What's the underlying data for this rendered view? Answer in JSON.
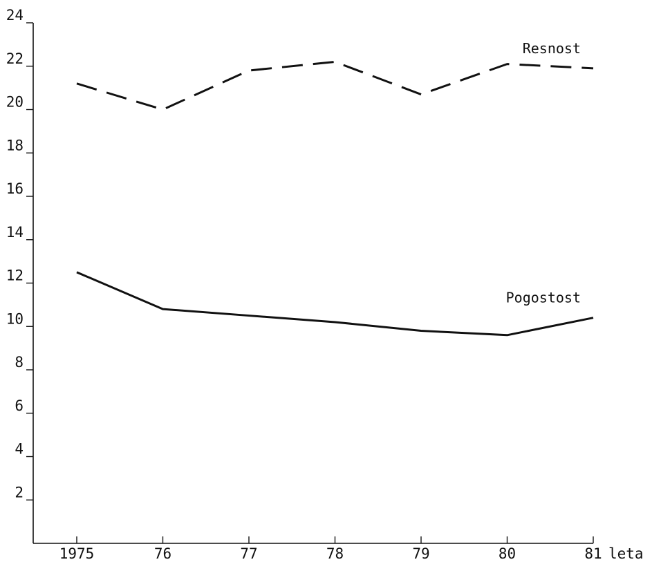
{
  "chart_data": {
    "type": "line",
    "title": "",
    "xlabel": "leta",
    "ylabel": "",
    "categories": [
      "1975",
      "76",
      "77",
      "78",
      "79",
      "80",
      "81"
    ],
    "yticks": [
      2,
      4,
      6,
      8,
      10,
      12,
      14,
      16,
      18,
      20,
      22,
      24
    ],
    "ylim": [
      0,
      24
    ],
    "grid": false,
    "series": [
      {
        "name": "Resnost",
        "style": "dashed",
        "values": [
          21.2,
          20.0,
          21.8,
          22.2,
          20.7,
          22.1,
          21.9
        ]
      },
      {
        "name": "Pogostost",
        "style": "solid",
        "values": [
          12.5,
          10.8,
          10.5,
          10.2,
          9.8,
          9.6,
          10.4
        ]
      }
    ],
    "colors": {
      "line": "#111111",
      "background": "#ffffff"
    }
  }
}
